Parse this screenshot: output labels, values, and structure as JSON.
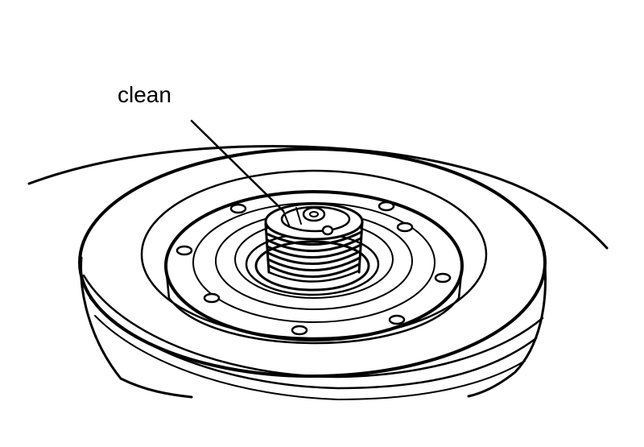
{
  "label": {
    "text": "clean"
  },
  "colors": {
    "line": "#000000",
    "background": "#ffffff"
  },
  "parts": {
    "bolt_count": 8
  }
}
